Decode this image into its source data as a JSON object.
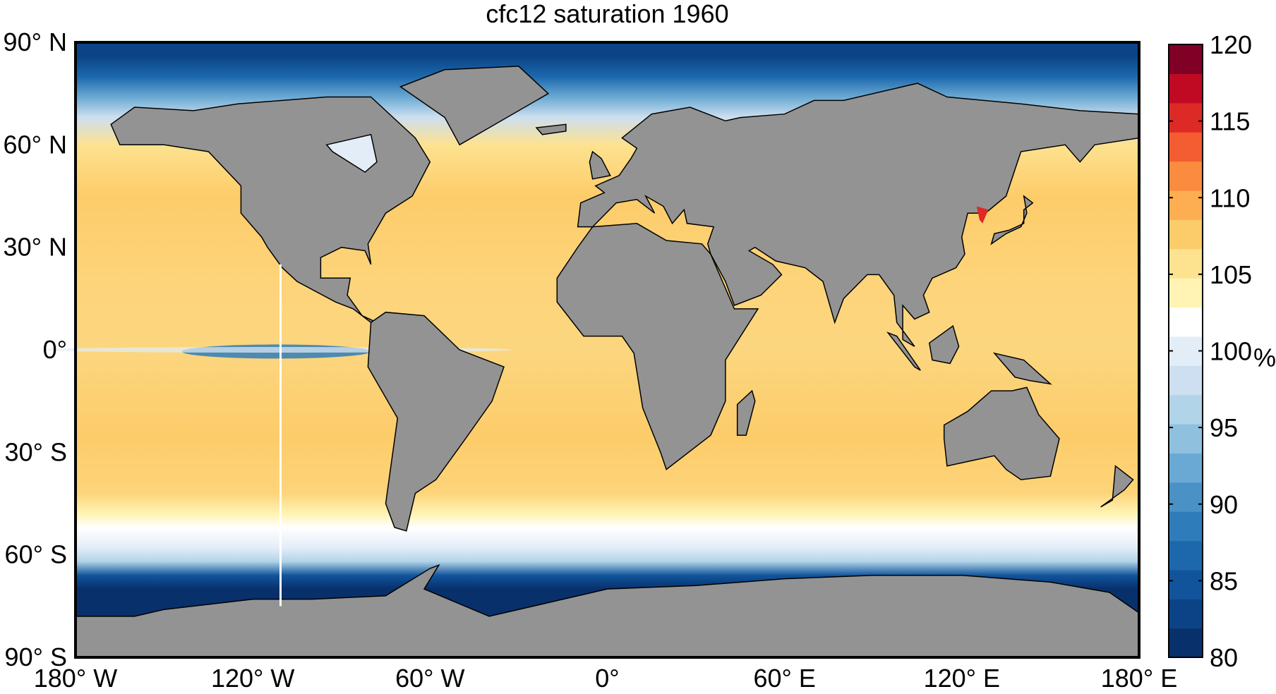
{
  "title": "cfc12 saturation 1960",
  "colors": {
    "land": "#939393",
    "coastline": "#000000"
  },
  "chart_data": {
    "type": "heatmap",
    "title": "cfc12 saturation 1960",
    "variable": "cfc12 saturation",
    "year": "1960",
    "x_ticks": [
      "180° W",
      "120° W",
      "60° W",
      "0°",
      "60° E",
      "120° E",
      "180° E"
    ],
    "y_ticks": [
      "90° N",
      "60° N",
      "30° N",
      "0°",
      "30° S",
      "60° S",
      "90° S"
    ],
    "xlim": [
      -180,
      180
    ],
    "ylim": [
      -90,
      90
    ],
    "colorbar": {
      "range": [
        80,
        120
      ],
      "ticks": [
        "120",
        "115",
        "110",
        "105",
        "100",
        "95",
        "90",
        "85",
        "80"
      ],
      "unit": "%",
      "colors": [
        "#08306b",
        "#0b4386",
        "#11549c",
        "#1d68ad",
        "#2f7cba",
        "#4a92c6",
        "#6aa9d3",
        "#8fc1de",
        "#b2d4e8",
        "#cddff0",
        "#e3edf8",
        "#ffffff",
        "#fff4b4",
        "#fde28f",
        "#fdcc6a",
        "#fdae52",
        "#fb8b3e",
        "#f45c31",
        "#de2a26",
        "#c00a23",
        "#800026"
      ]
    }
  }
}
